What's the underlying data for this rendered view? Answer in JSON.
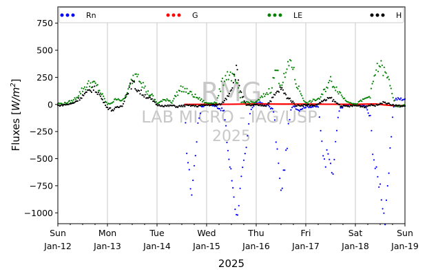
{
  "chart_data": {
    "type": "scatter",
    "title": "",
    "xlabel": "2025",
    "ylabel": "Fluxes [W/m²]",
    "ylabel_main": "Fluxes [",
    "ylabel_unit": "W/m",
    "ylabel_sup": "2",
    "ylabel_end": "]",
    "ylim": [
      -1100,
      900
    ],
    "xlim": [
      "2025-01-12",
      "2025-01-19"
    ],
    "yticks": [
      750,
      500,
      250,
      0,
      -250,
      -500,
      -750,
      -1000
    ],
    "ytick_labels": [
      "750",
      "500",
      "250",
      "0",
      "−250",
      "−500",
      "−750",
      "−1000"
    ],
    "xticks": [
      {
        "day": 0,
        "weekday": "Sun",
        "date": "Jan-12"
      },
      {
        "day": 1,
        "weekday": "Mon",
        "date": "Jan-13"
      },
      {
        "day": 2,
        "weekday": "Tue",
        "date": "Jan-14"
      },
      {
        "day": 3,
        "weekday": "Wed",
        "date": "Jan-15"
      },
      {
        "day": 4,
        "weekday": "Thu",
        "date": "Jan-16"
      },
      {
        "day": 5,
        "weekday": "Fri",
        "date": "Jan-17"
      },
      {
        "day": 6,
        "weekday": "Sat",
        "date": "Jan-18"
      },
      {
        "day": 7,
        "weekday": "Sun",
        "date": "Jan-19"
      }
    ],
    "grid": "vertical",
    "legend_position": "top",
    "series": [
      {
        "name": "Rn",
        "color": "#0000ff",
        "x": [
          2.55,
          2.6,
          2.65,
          2.7,
          2.75,
          2.8,
          2.85,
          2.9,
          3.0,
          3.1,
          3.2,
          3.35,
          3.45,
          3.55,
          3.6,
          3.65,
          3.7,
          3.75,
          3.8,
          3.85,
          3.9,
          3.95,
          4.0,
          4.1,
          4.25,
          4.35,
          4.4,
          4.45,
          4.5,
          4.55,
          4.6,
          4.65,
          4.7,
          4.75,
          4.8,
          4.85,
          5.0,
          5.25,
          5.3,
          5.35,
          5.4,
          5.45,
          5.5,
          5.55,
          5.6,
          5.65,
          5.7,
          5.8,
          6.0,
          6.2,
          6.3,
          6.35,
          6.4,
          6.45,
          6.5,
          6.55,
          6.6,
          6.65,
          6.7,
          6.75,
          6.8,
          6.9,
          7.0
        ],
        "y": [
          -10,
          -400,
          -650,
          -820,
          -580,
          -300,
          -120,
          -20,
          0,
          -5,
          -20,
          -60,
          -500,
          -820,
          -1040,
          -900,
          -700,
          -560,
          -420,
          -180,
          -40,
          -10,
          10,
          15,
          -10,
          -60,
          -300,
          -560,
          -830,
          -640,
          -480,
          -220,
          -60,
          -10,
          -30,
          -50,
          -20,
          -20,
          -260,
          -440,
          -520,
          -400,
          -500,
          -700,
          -330,
          -120,
          -30,
          -10,
          0,
          -15,
          -120,
          -400,
          -580,
          -680,
          -750,
          -920,
          -1080,
          -800,
          -460,
          -100,
          50,
          50,
          50
        ]
      },
      {
        "name": "G",
        "color": "#ff0000",
        "x": [
          2.55,
          3.0,
          3.5,
          4.0,
          4.5,
          5.0,
          5.5,
          6.0,
          6.4,
          6.6,
          6.8,
          7.0
        ],
        "y": [
          0,
          1,
          2,
          5,
          3,
          3,
          2,
          1,
          5,
          -5,
          -12,
          -10
        ]
      },
      {
        "name": "LE",
        "color": "#008000",
        "x": [
          0.0,
          0.1,
          0.2,
          0.3,
          0.4,
          0.5,
          0.6,
          0.7,
          0.8,
          1.0,
          1.1,
          1.2,
          1.3,
          1.4,
          1.5,
          1.6,
          1.7,
          1.8,
          1.9,
          2.0,
          2.1,
          2.2,
          2.3,
          2.4,
          2.5,
          3.0,
          3.2,
          3.3,
          3.4,
          3.5,
          3.6,
          3.7,
          4.0,
          4.3,
          4.4,
          4.5,
          4.6,
          4.7,
          4.8,
          5.0,
          5.3,
          5.4,
          5.5,
          5.6,
          5.7,
          5.8,
          6.0,
          6.3,
          6.4,
          6.5,
          6.6,
          6.7,
          6.8,
          7.0
        ],
        "y": [
          10,
          5,
          20,
          30,
          80,
          140,
          180,
          200,
          160,
          0,
          20,
          60,
          30,
          100,
          230,
          310,
          200,
          110,
          80,
          10,
          30,
          50,
          20,
          100,
          150,
          10,
          20,
          180,
          280,
          260,
          200,
          20,
          20,
          140,
          330,
          180,
          280,
          420,
          200,
          10,
          60,
          150,
          220,
          160,
          100,
          40,
          0,
          80,
          290,
          370,
          280,
          200,
          -20,
          -10
        ]
      },
      {
        "name": "H",
        "color": "#000000",
        "x": [
          0.0,
          0.1,
          0.2,
          0.3,
          0.4,
          0.5,
          0.6,
          0.7,
          0.8,
          0.9,
          1.0,
          1.1,
          1.2,
          1.3,
          1.4,
          1.5,
          1.6,
          1.7,
          1.8,
          1.9,
          2.0,
          2.1,
          2.2,
          2.3,
          2.4,
          2.5,
          2.6,
          2.7,
          2.8,
          2.9,
          3.0,
          3.2,
          3.3,
          3.4,
          3.5,
          3.6,
          3.7,
          3.8,
          4.0,
          4.2,
          4.3,
          4.4,
          4.5,
          4.6,
          4.7,
          4.8,
          5.0,
          5.2,
          5.3,
          5.4,
          5.5,
          5.6,
          5.7,
          5.8,
          6.0,
          6.2,
          6.3,
          6.4,
          6.5,
          6.6,
          6.7,
          6.8,
          6.9,
          7.0
        ],
        "y": [
          -10,
          -5,
          0,
          10,
          40,
          80,
          110,
          150,
          120,
          40,
          -30,
          -50,
          -30,
          -10,
          110,
          200,
          140,
          100,
          70,
          40,
          -5,
          -10,
          -15,
          -10,
          -20,
          -15,
          -10,
          -10,
          -15,
          -10,
          -5,
          -5,
          5,
          60,
          150,
          320,
          100,
          -10,
          -5,
          -10,
          40,
          100,
          150,
          80,
          40,
          -10,
          -5,
          -10,
          20,
          40,
          60,
          20,
          -10,
          -20,
          -10,
          -20,
          -5,
          -10,
          10,
          20,
          0,
          -10,
          -15,
          -15
        ]
      }
    ]
  },
  "watermark": {
    "line1": "RMG",
    "line2": "LAB MICRO - IAG/USP",
    "line3": "2025"
  }
}
